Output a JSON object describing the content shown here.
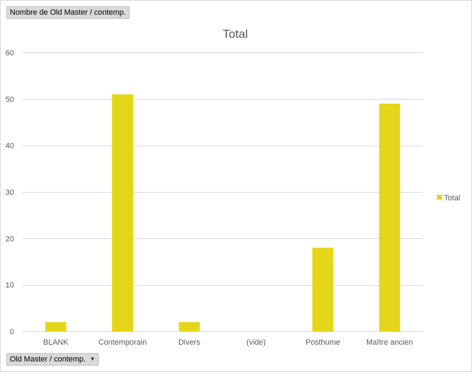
{
  "field_buttons": {
    "values_field": "Nombre de Old Master / contemp.",
    "axis_field": "Old Master / contemp."
  },
  "chart_data": {
    "type": "bar",
    "title": "Total",
    "xlabel": "",
    "ylabel": "",
    "categories": [
      "BLANK",
      "Contemporain",
      "Divers",
      "(vide)",
      "Posthume",
      "Maître ancien"
    ],
    "series": [
      {
        "name": "Total",
        "values": [
          2,
          51,
          2,
          0,
          18,
          49
        ],
        "color": "#e5d619"
      }
    ],
    "ylim": [
      0,
      60
    ],
    "yticks": [
      0,
      10,
      20,
      30,
      40,
      50,
      60
    ],
    "grid": true,
    "legend_position": "right"
  }
}
